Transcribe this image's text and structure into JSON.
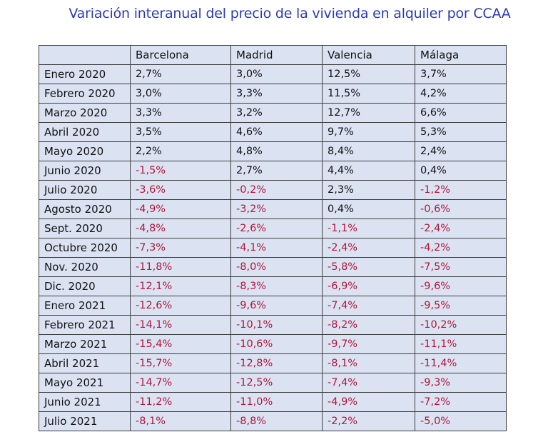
{
  "title": "Variación interanual del precio de la vivienda en alquiler por CCAA",
  "colors": {
    "title": "#2b3ab8",
    "table_background": "#dbe3f2",
    "negative_value": "#b0173a",
    "positive_value": "#111111"
  },
  "table": {
    "headers": [
      "",
      "Barcelona",
      "Madrid",
      "Valencia",
      "Málaga"
    ],
    "rows": [
      {
        "month": "Enero 2020",
        "values": [
          "2,7%",
          "3,0%",
          "12,5%",
          "3,7%"
        ]
      },
      {
        "month": "Febrero 2020",
        "values": [
          "3,0%",
          "3,3%",
          "11,5%",
          "4,2%"
        ]
      },
      {
        "month": "Marzo 2020",
        "values": [
          "3,3%",
          "3,2%",
          "12,7%",
          "6,6%"
        ]
      },
      {
        "month": "Abril 2020",
        "values": [
          "3,5%",
          "4,6%",
          "9,7%",
          "5,3%"
        ]
      },
      {
        "month": "Mayo 2020",
        "values": [
          "2,2%",
          "4,8%",
          "8,4%",
          "2,4%"
        ]
      },
      {
        "month": "Junio 2020",
        "values": [
          "-1,5%",
          "2,7%",
          "4,4%",
          "0,4%"
        ]
      },
      {
        "month": "Julio 2020",
        "values": [
          "-3,6%",
          "-0,2%",
          "2,3%",
          "-1,2%"
        ]
      },
      {
        "month": "Agosto 2020",
        "values": [
          "-4,9%",
          "-3,2%",
          "0,4%",
          "-0,6%"
        ]
      },
      {
        "month": "Sept. 2020",
        "values": [
          "-4,8%",
          "-2,6%",
          "-1,1%",
          "-2,4%"
        ]
      },
      {
        "month": "Octubre 2020",
        "values": [
          "-7,3%",
          "-4,1%",
          "-2,4%",
          "-4,2%"
        ]
      },
      {
        "month": "Nov. 2020",
        "values": [
          "-11,8%",
          "-8,0%",
          "-5,8%",
          "-7,5%"
        ]
      },
      {
        "month": "Dic. 2020",
        "values": [
          "-12,1%",
          "-8,3%",
          "-6,9%",
          "-9,6%"
        ]
      },
      {
        "month": "Enero 2021",
        "values": [
          "-12,6%",
          "-9,6%",
          "-7,4%",
          "-9,5%"
        ]
      },
      {
        "month": "Febrero 2021",
        "values": [
          "-14,1%",
          "-10,1%",
          "-8,2%",
          "-10,2%"
        ]
      },
      {
        "month": "Marzo 2021",
        "values": [
          "-15,4%",
          "-10,6%",
          "-9,7%",
          "-11,1%"
        ]
      },
      {
        "month": "Abril 2021",
        "values": [
          "-15,7%",
          "-12,8%",
          "-8,1%",
          "-11,4%"
        ]
      },
      {
        "month": "Mayo 2021",
        "values": [
          "-14,7%",
          "-12,5%",
          "-7,4%",
          "-9,3%"
        ]
      },
      {
        "month": "Junio 2021",
        "values": [
          "-11,2%",
          "-11,0%",
          "-4,9%",
          "-7,2%"
        ]
      },
      {
        "month": "Julio 2021",
        "values": [
          "-8,1%",
          "-8,8%",
          "-2,2%",
          "-5,0%"
        ]
      }
    ]
  }
}
